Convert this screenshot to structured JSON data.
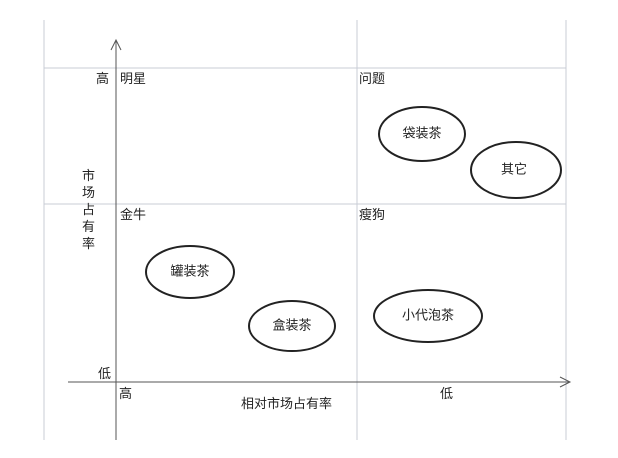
{
  "diagram": {
    "y_axis": {
      "label": "市场占有率",
      "high": "高",
      "low": "低"
    },
    "x_axis": {
      "label": "相对市场占有率",
      "high": "高",
      "low": "低"
    },
    "quadrants": {
      "top_left": "明星",
      "top_right": "问题",
      "bottom_left": "金牛",
      "bottom_right": "瘦狗"
    },
    "products": [
      {
        "label": "袋装茶"
      },
      {
        "label": "其它"
      },
      {
        "label": "罐装茶"
      },
      {
        "label": "盒装茶"
      },
      {
        "label": "小代泡茶"
      }
    ],
    "colors": {
      "grid": "#c8ccd6",
      "axis": "#555555",
      "ellipse": "#222222"
    }
  }
}
